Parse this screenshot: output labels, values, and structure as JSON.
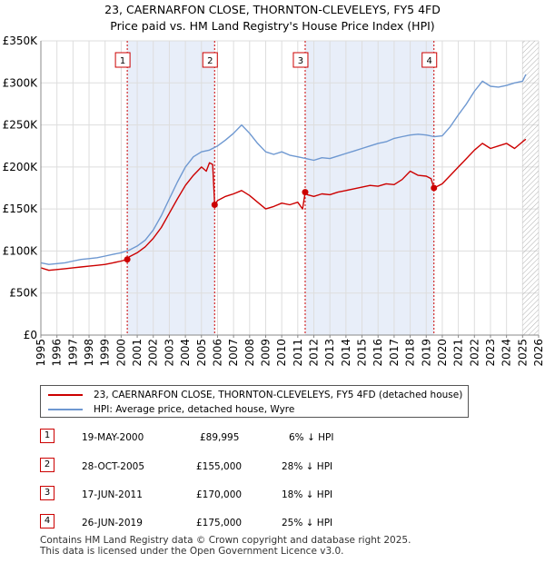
{
  "title_line1": "23, CAERNARFON CLOSE, THORNTON-CLEVELEYS, FY5 4FD",
  "title_line2": "Price paid vs. HM Land Registry's House Price Index (HPI)",
  "colors": {
    "price_paid": "#cc0000",
    "hpi": "#6e98d1",
    "shade": "#e8eef9",
    "grid": "#dddddd",
    "marker_border": "#cc0000"
  },
  "legend": {
    "price_label": "23, CAERNARFON CLOSE, THORNTON-CLEVELEYS, FY5 4FD (detached house)",
    "hpi_label": "HPI: Average price, detached house, Wyre"
  },
  "transactions": [
    {
      "num": "1",
      "date": "19-MAY-2000",
      "price": "£89,995",
      "hpi": "6% ↓ HPI"
    },
    {
      "num": "2",
      "date": "28-OCT-2005",
      "price": "£155,000",
      "hpi": "28% ↓ HPI"
    },
    {
      "num": "3",
      "date": "17-JUN-2011",
      "price": "£170,000",
      "hpi": "18% ↓ HPI"
    },
    {
      "num": "4",
      "date": "26-JUN-2019",
      "price": "£175,000",
      "hpi": "25% ↓ HPI"
    }
  ],
  "footer_line1": "Contains HM Land Registry data © Crown copyright and database right 2025.",
  "footer_line2": "This data is licensed under the Open Government Licence v3.0.",
  "chart_data": {
    "type": "line",
    "title": "23, CAERNARFON CLOSE, THORNTON-CLEVELEYS, FY5 4FD — Price paid vs. HM Land Registry's House Price Index (HPI)",
    "xlim": [
      1995,
      2026
    ],
    "ylim": [
      0,
      350000
    ],
    "x_ticks": [
      1995,
      1996,
      1997,
      1998,
      1999,
      2000,
      2001,
      2002,
      2003,
      2004,
      2005,
      2006,
      2007,
      2008,
      2009,
      2010,
      2011,
      2012,
      2013,
      2014,
      2015,
      2016,
      2017,
      2018,
      2019,
      2020,
      2021,
      2022,
      2023,
      2024,
      2025,
      2026
    ],
    "y_ticks": [
      0,
      50000,
      100000,
      150000,
      200000,
      250000,
      300000,
      350000
    ],
    "y_tick_labels": [
      "£0",
      "£50K",
      "£100K",
      "£150K",
      "£200K",
      "£250K",
      "£300K",
      "£350K"
    ],
    "grid": true,
    "sale_markers": [
      {
        "label": "1",
        "x": 2000.38,
        "y": 89995
      },
      {
        "label": "2",
        "x": 2005.82,
        "y": 155000
      },
      {
        "label": "3",
        "x": 2011.46,
        "y": 170000
      },
      {
        "label": "4",
        "x": 2019.48,
        "y": 175000
      }
    ],
    "shaded_ranges": [
      [
        2000.38,
        2005.82
      ],
      [
        2011.46,
        2019.48
      ]
    ],
    "hatched_after": 2025.0,
    "series": [
      {
        "name": "23, CAERNARFON CLOSE, THORNTON-CLEVELEYS, FY5 4FD (detached house)",
        "color": "#cc0000",
        "x": [
          1995.0,
          1995.5,
          1996.0,
          1996.5,
          1997.0,
          1997.5,
          1998.0,
          1998.5,
          1999.0,
          1999.5,
          2000.0,
          2000.38,
          2000.5,
          2001.0,
          2001.5,
          2002.0,
          2002.5,
          2003.0,
          2003.5,
          2004.0,
          2004.5,
          2005.0,
          2005.3,
          2005.5,
          2005.7,
          2005.8,
          2005.82,
          2006.0,
          2006.5,
          2007.0,
          2007.5,
          2008.0,
          2008.5,
          2009.0,
          2009.5,
          2010.0,
          2010.5,
          2011.0,
          2011.3,
          2011.46,
          2011.6,
          2012.0,
          2012.5,
          2013.0,
          2013.5,
          2014.0,
          2014.5,
          2015.0,
          2015.5,
          2016.0,
          2016.5,
          2017.0,
          2017.5,
          2018.0,
          2018.5,
          2019.0,
          2019.3,
          2019.48,
          2019.7,
          2020.0,
          2020.5,
          2021.0,
          2021.5,
          2022.0,
          2022.5,
          2023.0,
          2023.5,
          2024.0,
          2024.5,
          2025.0,
          2025.2
        ],
        "y": [
          80000,
          77000,
          78000,
          79000,
          80000,
          81000,
          82000,
          83000,
          84000,
          86000,
          88000,
          89995,
          93000,
          98000,
          105000,
          115000,
          128000,
          145000,
          162000,
          178000,
          190000,
          200000,
          195000,
          205000,
          203000,
          165000,
          155000,
          160000,
          165000,
          168000,
          172000,
          166000,
          158000,
          150000,
          153000,
          157000,
          155000,
          158000,
          150000,
          170000,
          167000,
          165000,
          168000,
          167000,
          170000,
          172000,
          174000,
          176000,
          178000,
          177000,
          180000,
          179000,
          185000,
          195000,
          190000,
          189000,
          186000,
          175000,
          177000,
          180000,
          190000,
          200000,
          210000,
          220000,
          228000,
          222000,
          225000,
          228000,
          222000,
          230000,
          233000
        ]
      },
      {
        "name": "HPI: Average price, detached house, Wyre",
        "color": "#6e98d1",
        "x": [
          1995.0,
          1995.5,
          1996.0,
          1996.5,
          1997.0,
          1997.5,
          1998.0,
          1998.5,
          1999.0,
          1999.5,
          2000.0,
          2000.5,
          2001.0,
          2001.5,
          2002.0,
          2002.5,
          2003.0,
          2003.5,
          2004.0,
          2004.5,
          2005.0,
          2005.5,
          2006.0,
          2006.5,
          2007.0,
          2007.5,
          2008.0,
          2008.5,
          2009.0,
          2009.5,
          2010.0,
          2010.5,
          2011.0,
          2011.5,
          2012.0,
          2012.5,
          2013.0,
          2013.5,
          2014.0,
          2014.5,
          2015.0,
          2015.5,
          2016.0,
          2016.5,
          2017.0,
          2017.5,
          2018.0,
          2018.5,
          2019.0,
          2019.5,
          2020.0,
          2020.5,
          2021.0,
          2021.5,
          2022.0,
          2022.5,
          2023.0,
          2023.5,
          2024.0,
          2024.5,
          2025.0,
          2025.2
        ],
        "y": [
          86000,
          84000,
          85000,
          86000,
          88000,
          90000,
          91000,
          92000,
          94000,
          96000,
          98000,
          101000,
          106000,
          113000,
          125000,
          142000,
          162000,
          182000,
          200000,
          212000,
          218000,
          220000,
          225000,
          232000,
          240000,
          250000,
          240000,
          228000,
          218000,
          215000,
          218000,
          214000,
          212000,
          210000,
          208000,
          211000,
          210000,
          213000,
          216000,
          219000,
          222000,
          225000,
          228000,
          230000,
          234000,
          236000,
          238000,
          239000,
          238000,
          236000,
          237000,
          248000,
          262000,
          275000,
          290000,
          302000,
          296000,
          295000,
          297000,
          300000,
          302000,
          310000
        ]
      }
    ]
  }
}
